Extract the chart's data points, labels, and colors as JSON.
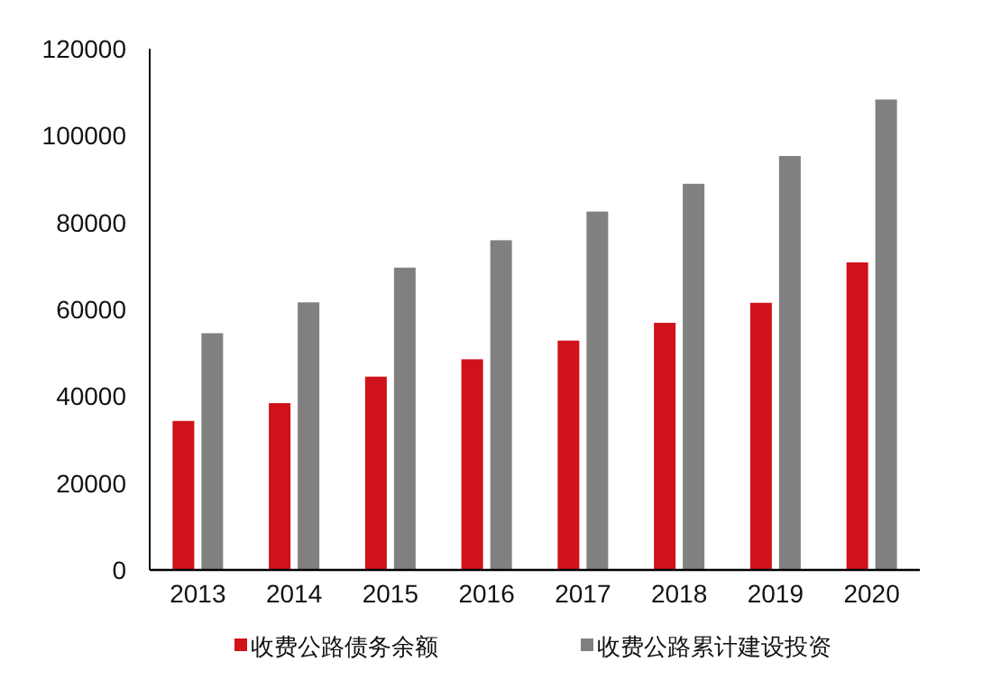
{
  "chart_data": {
    "type": "bar",
    "categories": [
      "2013",
      "2014",
      "2015",
      "2016",
      "2017",
      "2018",
      "2019",
      "2020"
    ],
    "series": [
      {
        "name": "收费公路债务余额",
        "color": "#d0121b",
        "values": [
          34300,
          38400,
          44500,
          48500,
          52800,
          56900,
          61500,
          70800
        ]
      },
      {
        "name": "收费公路累计建设投资",
        "color": "#808080",
        "values": [
          54500,
          61600,
          69600,
          75900,
          82500,
          88900,
          95300,
          108300
        ]
      }
    ],
    "ylim": [
      0,
      120000
    ],
    "yticks": [
      0,
      20000,
      40000,
      60000,
      80000,
      100000,
      120000
    ],
    "grid": false,
    "legend": "bottom"
  }
}
